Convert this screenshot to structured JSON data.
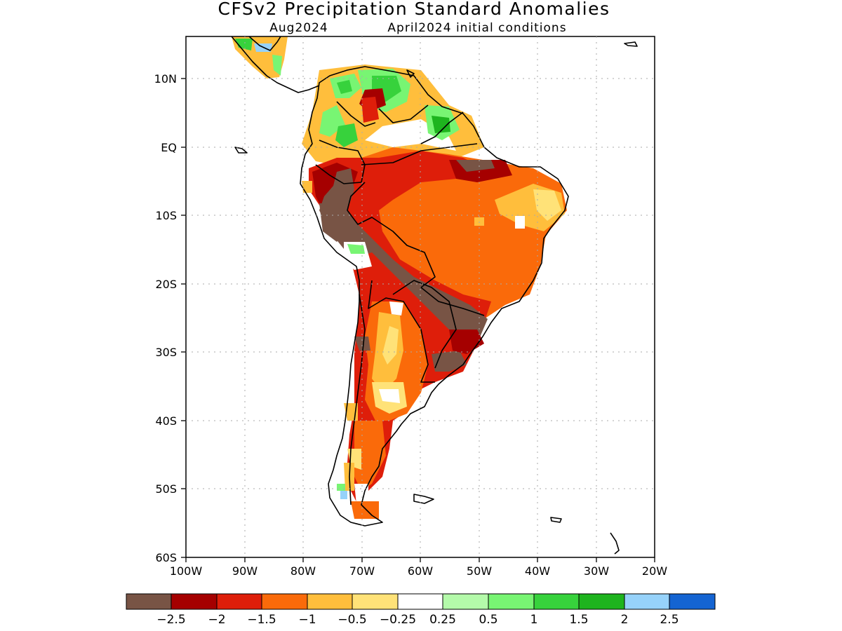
{
  "map": {
    "title": "CFSv2 Precipitation Standard Anomalies",
    "target_month": "Aug2024",
    "initial_conditions": "April2024 initial conditions",
    "lat_labels": [
      "10N",
      "EQ",
      "10S",
      "20S",
      "30S",
      "40S",
      "50S",
      "60S"
    ],
    "lon_labels": [
      "100W",
      "90W",
      "80W",
      "70W",
      "60W",
      "50W",
      "40W",
      "30W",
      "20W"
    ],
    "colors": {
      "lt_m2_5": "#785445",
      "m2_5_m2": "#a50000",
      "m2_m1_5": "#de1e0a",
      "m1_5_m1": "#fa6a0a",
      "m1_m0_5": "#ffbe3c",
      "m0_5_m0_25": "#ffe278",
      "neutral": "#ffffff",
      "p0_25_p0_5": "#b4faaa",
      "p0_5_p1": "#78f573",
      "p1_p1_5": "#37d23c",
      "p1_5_p2": "#1eb41e",
      "p2_p2_5": "#96d2fa",
      "gt_p2_5": "#1464d2"
    }
  },
  "legend": {
    "ticks": [
      "−2.5",
      "−2",
      "−1.5",
      "−1",
      "−0.5",
      "−0.25",
      "0.25",
      "0.5",
      "1",
      "1.5",
      "2",
      "2.5"
    ]
  }
}
